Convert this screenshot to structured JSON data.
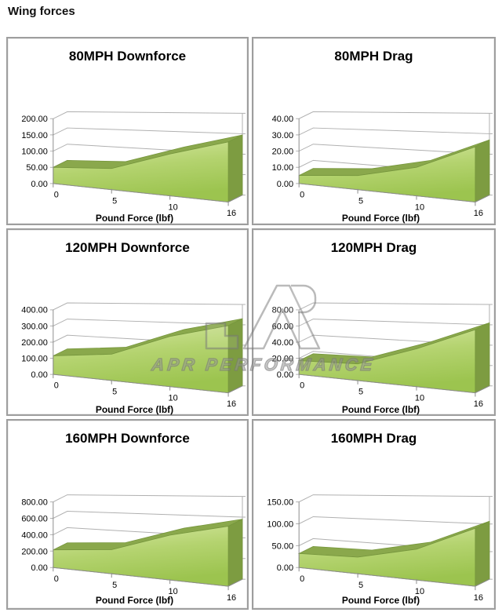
{
  "page": {
    "title": "Wing forces"
  },
  "watermark": {
    "text": "APR PERFORMANCE"
  },
  "style": {
    "area_top": "#d6e7a2",
    "area_mid": "#b4d36f",
    "area_bottom": "#9cc44f",
    "ridge": "#8aa84c",
    "cap": "#7d9c41",
    "edge": "#76963d",
    "grid": "#b0b0b0",
    "axis": "#8c8c8c",
    "panel_border": "#9e9e9e",
    "text": "#000000"
  },
  "chart_data": [
    {
      "type": "area",
      "style3d": true,
      "title": "80MPH Downforce",
      "xlabel": "Pound Force (lbf)",
      "x": [
        "0",
        "5",
        "10",
        "16"
      ],
      "values": [
        50,
        60,
        110,
        147
      ],
      "ylim": [
        0,
        200
      ],
      "yticks": [
        0,
        50,
        100,
        150,
        200
      ],
      "ytick_decimals": 2,
      "legend": "none",
      "grid": true
    },
    {
      "type": "area",
      "style3d": true,
      "title": "80MPH Drag",
      "xlabel": "Pound Force (lbf)",
      "x": [
        "0",
        "5",
        "10",
        "16"
      ],
      "values": [
        5,
        8,
        15,
        27
      ],
      "ylim": [
        0,
        40
      ],
      "yticks": [
        0,
        10,
        20,
        30,
        40
      ],
      "ytick_decimals": 2,
      "legend": "none",
      "grid": true
    },
    {
      "type": "area",
      "style3d": true,
      "title": "120MPH Downforce",
      "xlabel": "Pound Force (lbf)",
      "x": [
        "0",
        "5",
        "10",
        "16"
      ],
      "values": [
        115,
        150,
        265,
        330
      ],
      "ylim": [
        0,
        400
      ],
      "yticks": [
        0,
        100,
        200,
        300,
        400
      ],
      "ytick_decimals": 2,
      "legend": "none",
      "grid": true
    },
    {
      "type": "area",
      "style3d": true,
      "title": "120MPH Drag",
      "xlabel": "Pound Force (lbf)",
      "x": [
        "0",
        "5",
        "10",
        "16"
      ],
      "values": [
        17,
        19,
        40,
        62
      ],
      "ylim": [
        0,
        80
      ],
      "yticks": [
        0,
        20,
        40,
        60,
        80
      ],
      "ytick_decimals": 2,
      "legend": "none",
      "grid": true
    },
    {
      "type": "area",
      "style3d": true,
      "title": "160MPH Downforce",
      "xlabel": "Pound Force (lbf)",
      "x": [
        "0",
        "5",
        "10",
        "16"
      ],
      "values": [
        215,
        270,
        465,
        580
      ],
      "ylim": [
        0,
        800
      ],
      "yticks": [
        0,
        200,
        400,
        600,
        800
      ],
      "ytick_decimals": 2,
      "legend": "none",
      "grid": true
    },
    {
      "type": "area",
      "style3d": true,
      "title": "160MPH Drag",
      "xlabel": "Pound Force (lbf)",
      "x": [
        "0",
        "5",
        "10",
        "16"
      ],
      "values": [
        32,
        35,
        60,
        105
      ],
      "ylim": [
        0,
        150
      ],
      "yticks": [
        0,
        50,
        100,
        150
      ],
      "ytick_decimals": 2,
      "legend": "none",
      "grid": true
    }
  ]
}
